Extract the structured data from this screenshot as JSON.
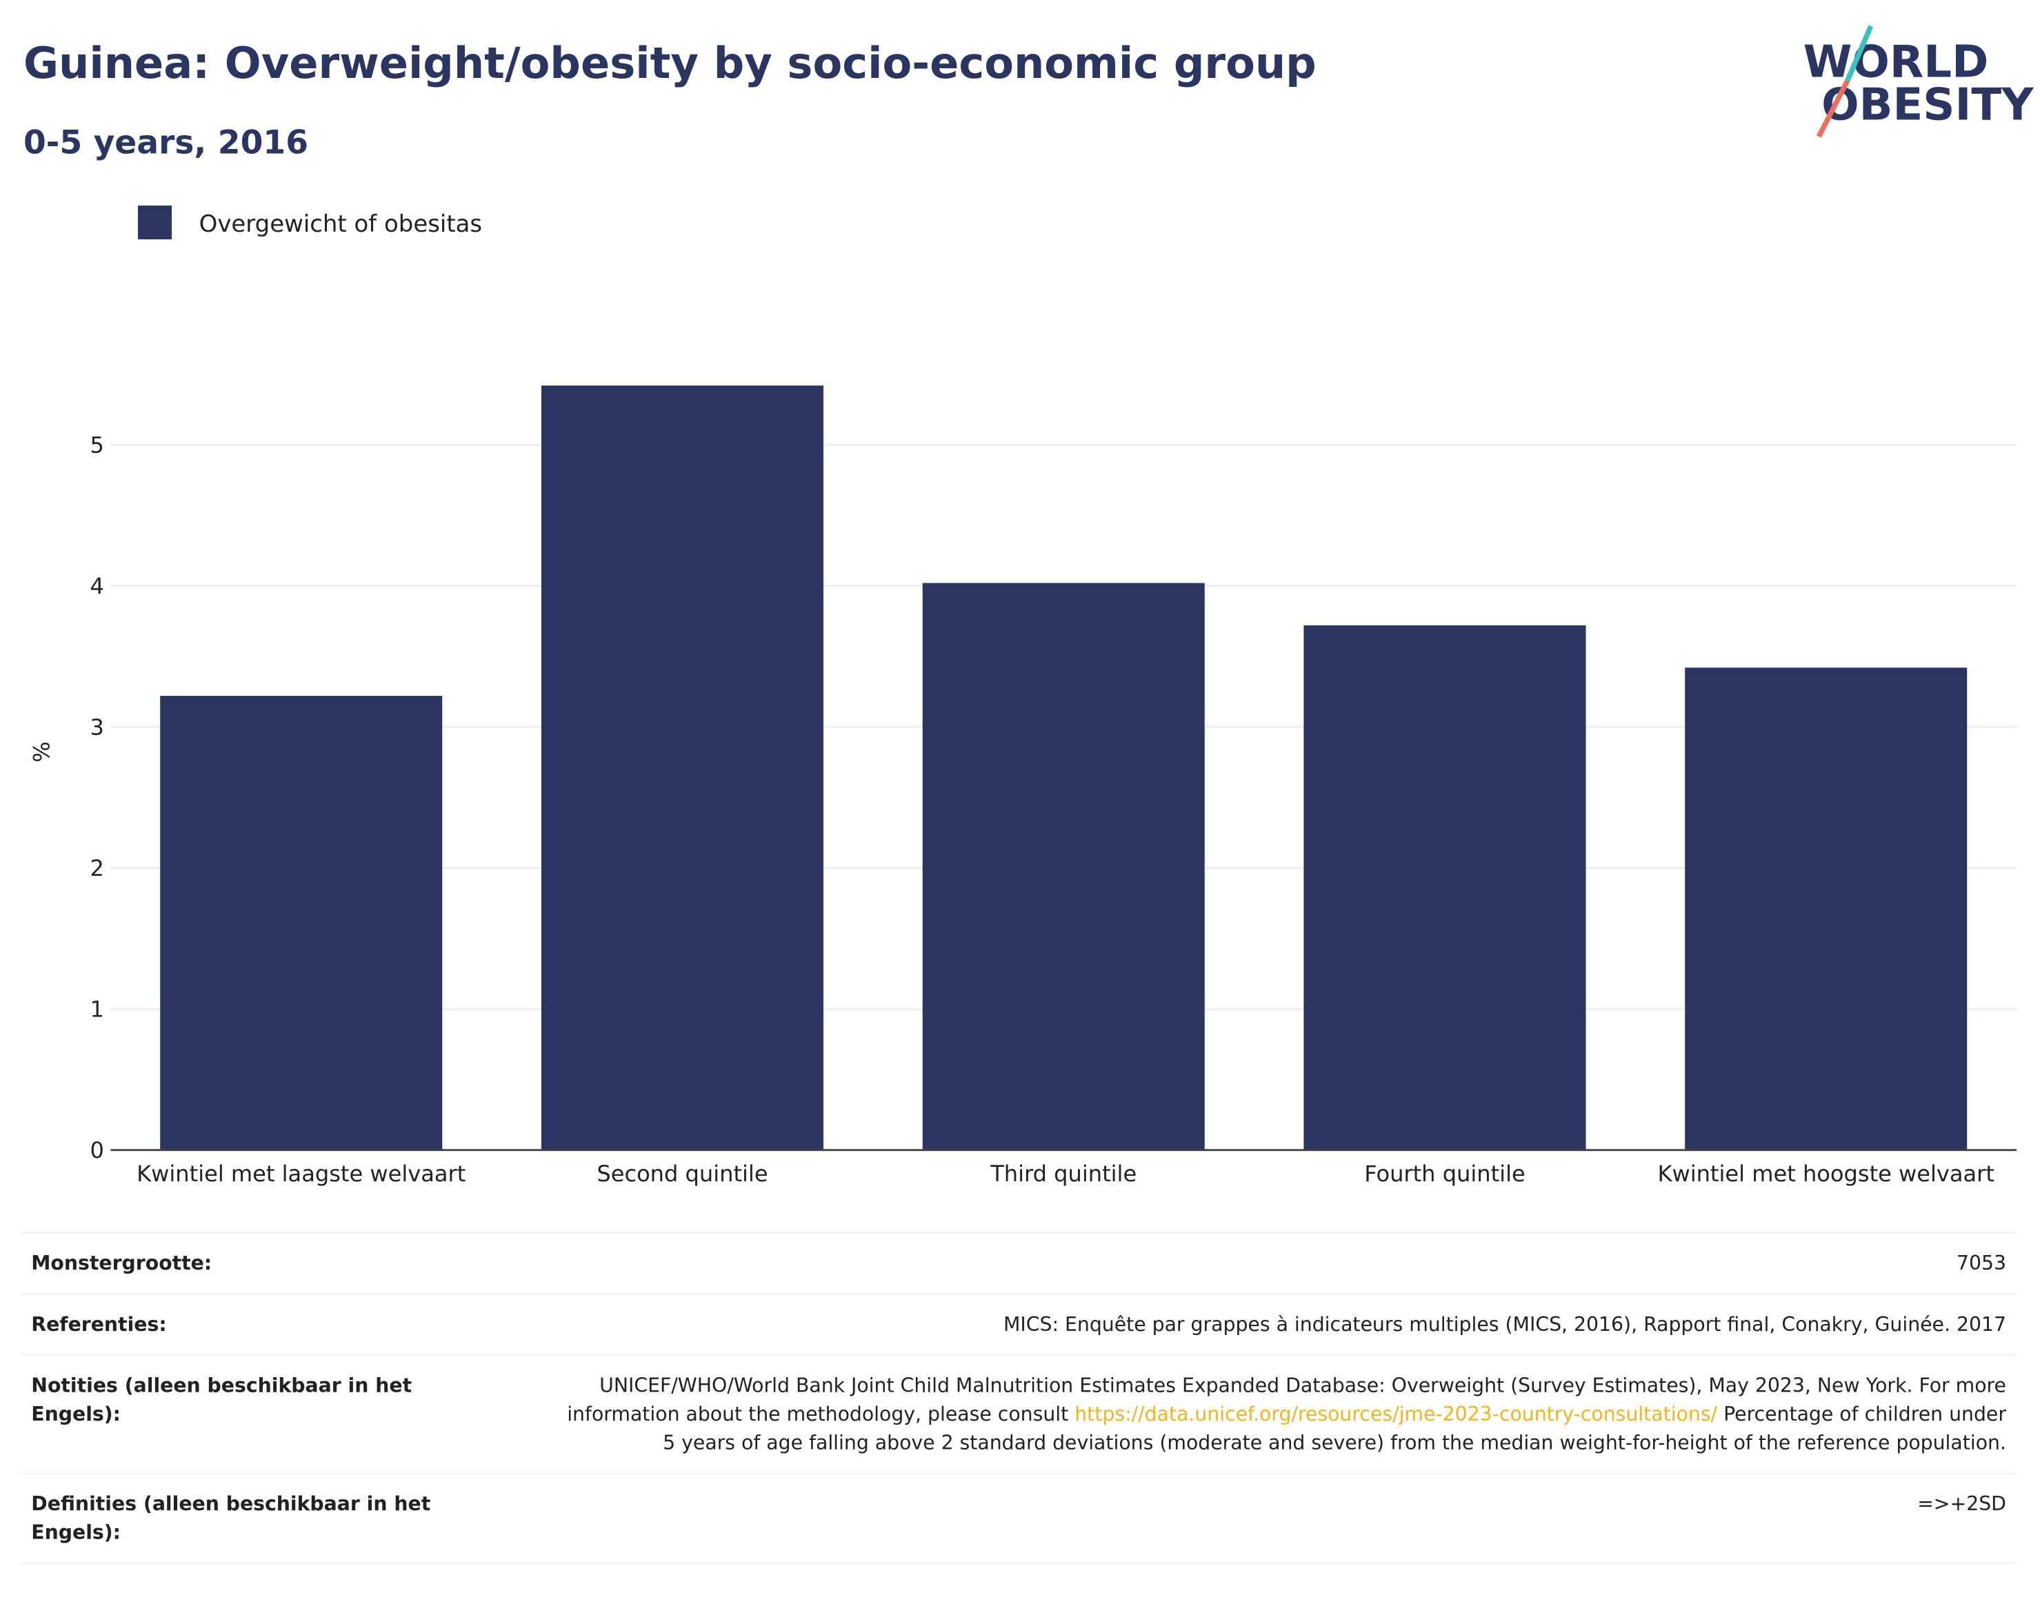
{
  "chart_data": {
    "type": "bar",
    "title": "Guinea: Overweight/obesity by socio-economic group",
    "subtitle": "0-5 years, 2016",
    "y_label": "%",
    "categories": [
      "Kwintiel met laagste welvaart",
      "Second quintile",
      "Third quintile",
      "Fourth quintile",
      "Kwintiel met hoogste welvaart"
    ],
    "series": [
      {
        "name": "Overgewicht of obesitas",
        "color": "#2a3561",
        "values": [
          3.22,
          5.42,
          4.02,
          3.72,
          3.42
        ]
      }
    ],
    "ylim": [
      0,
      5.7
    ],
    "yticks": [
      0,
      1,
      2,
      3,
      4,
      5
    ],
    "grid": true,
    "legend": "top-left"
  },
  "logo": {
    "line1": "WORLD",
    "line2": "OBESITY"
  },
  "table": {
    "rows": [
      [
        "Monstergrootte:",
        "7053"
      ],
      [
        "Referenties:",
        "MICS: Enquête par grappes à indicateurs multiples (MICS, 2016), Rapport final, Conakry, Guinée. 2017"
      ],
      [
        "Notities (alleen beschikbaar in het Engels):",
        "UNICEF/WHO/World Bank Joint Child Malnutrition Estimates Expanded Database: Overweight (Survey Estimates), May 2023, New York. For more information about the methodology, please consult",
        "https://data.unicef.org/resources/jme-2023-country-consultations/",
        "Percentage of children under 5 years of age falling above 2 standard deviations (moderate and severe) from the median weight-for-height of the reference population."
      ],
      [
        "Definities (alleen beschikbaar in het Engels):",
        "=>+2SD"
      ]
    ]
  }
}
